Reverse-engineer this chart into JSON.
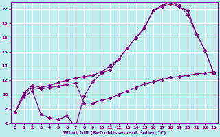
{
  "xlabel": "Windchill (Refroidissement éolien,°C)",
  "bg_color": "#c0eced",
  "line_color": "#800080",
  "grid_color": "#ffffff",
  "xlim": [
    -0.5,
    23.5
  ],
  "ylim": [
    6,
    23
  ],
  "xticks": [
    0,
    1,
    2,
    3,
    4,
    5,
    6,
    7,
    8,
    9,
    10,
    11,
    12,
    13,
    14,
    15,
    16,
    17,
    18,
    19,
    20,
    21,
    22,
    23
  ],
  "yticks": [
    6,
    8,
    10,
    12,
    14,
    16,
    18,
    20,
    22
  ],
  "series1_x": [
    0,
    1,
    2,
    3,
    4,
    5,
    6,
    7,
    8,
    9,
    10,
    11,
    12,
    13,
    14,
    15,
    16,
    17,
    18,
    19,
    20,
    21,
    22,
    23
  ],
  "series1_y": [
    7.5,
    9.7,
    10.5,
    7.2,
    6.7,
    6.5,
    7.0,
    5.5,
    9.8,
    11.8,
    13.0,
    13.5,
    15.0,
    16.5,
    18.0,
    19.3,
    21.8,
    22.5,
    23.0,
    22.5,
    21.2,
    18.5,
    16.2,
    13.0
  ],
  "series2_x": [
    0,
    1,
    2,
    3,
    4,
    5,
    6,
    7,
    8,
    9,
    10,
    11,
    12,
    13,
    14,
    15,
    16,
    17,
    18,
    19,
    20,
    21,
    22,
    23
  ],
  "series2_y": [
    7.5,
    10.2,
    11.3,
    11.0,
    11.3,
    11.7,
    12.0,
    12.3,
    12.5,
    12.7,
    13.2,
    14.0,
    15.0,
    16.5,
    18.0,
    19.5,
    21.8,
    22.3,
    22.7,
    22.3,
    21.8,
    18.5,
    16.2,
    13.0
  ],
  "series3_x": [
    0,
    1,
    2,
    3,
    4,
    5,
    6,
    7,
    8,
    9,
    10,
    11,
    12,
    13,
    14,
    15,
    16,
    17,
    18,
    19,
    20,
    21,
    22,
    23
  ],
  "series3_y": [
    7.5,
    10.0,
    11.0,
    10.8,
    11.0,
    11.2,
    11.4,
    11.6,
    8.8,
    8.8,
    9.2,
    9.5,
    10.0,
    10.5,
    11.0,
    11.5,
    11.8,
    12.1,
    12.4,
    12.5,
    12.7,
    12.9,
    13.0,
    13.2
  ],
  "marker": "D",
  "markersize": 2.0,
  "linewidth": 0.9
}
